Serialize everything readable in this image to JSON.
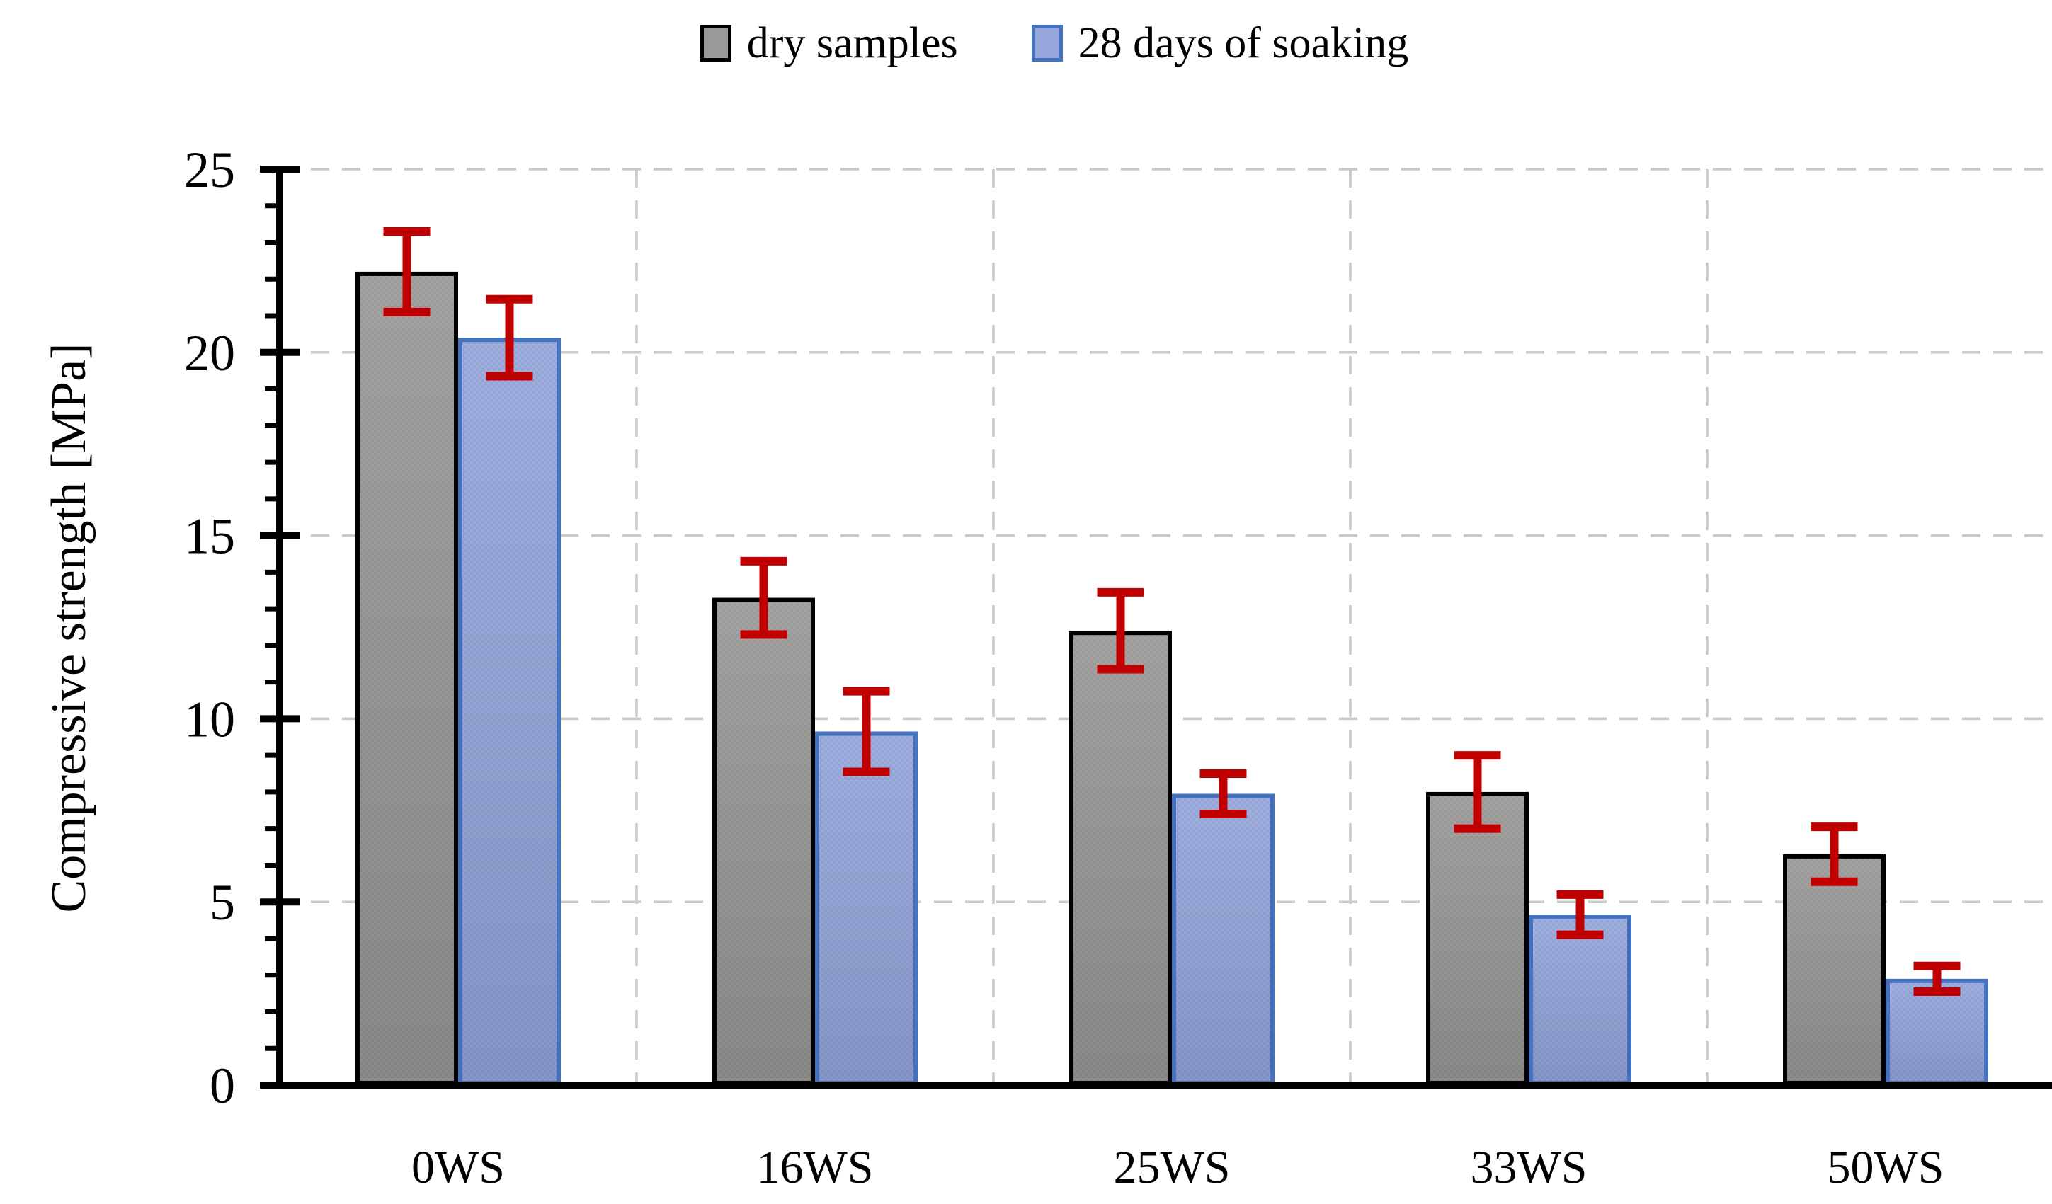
{
  "chart_data": {
    "type": "bar",
    "title": "",
    "ylabel": "Compressive strength [MPa]",
    "xlabel": "",
    "ylim": [
      0,
      25
    ],
    "yticks": [
      0,
      5,
      10,
      15,
      20,
      25
    ],
    "minor_tick_step": 1,
    "grid": {
      "horizontal": true,
      "vertical": true,
      "line_style": "dashed"
    },
    "legend_position": "top-center",
    "categories": [
      "0WS",
      "16WS",
      "25WS",
      "33WS",
      "50WS"
    ],
    "series": [
      {
        "key": "dry",
        "name": "dry samples",
        "values": [
          22.2,
          13.3,
          12.4,
          8.0,
          6.3
        ],
        "errors": [
          1.1,
          1.0,
          1.05,
          1.0,
          0.75
        ],
        "fill": "#9a9998",
        "border": "#000000"
      },
      {
        "key": "soaked",
        "name": "28 days of soaking",
        "values": [
          20.4,
          9.65,
          7.95,
          4.65,
          2.9
        ],
        "errors": [
          1.05,
          1.1,
          0.55,
          0.55,
          0.35
        ],
        "fill": "#95a7dd",
        "border": "#4471c0"
      }
    ],
    "colors": {
      "error_bar": "#c00000",
      "gridline": "#c9c9c9",
      "axis": "#000000",
      "text": "#000000",
      "background": "#ffffff"
    }
  }
}
